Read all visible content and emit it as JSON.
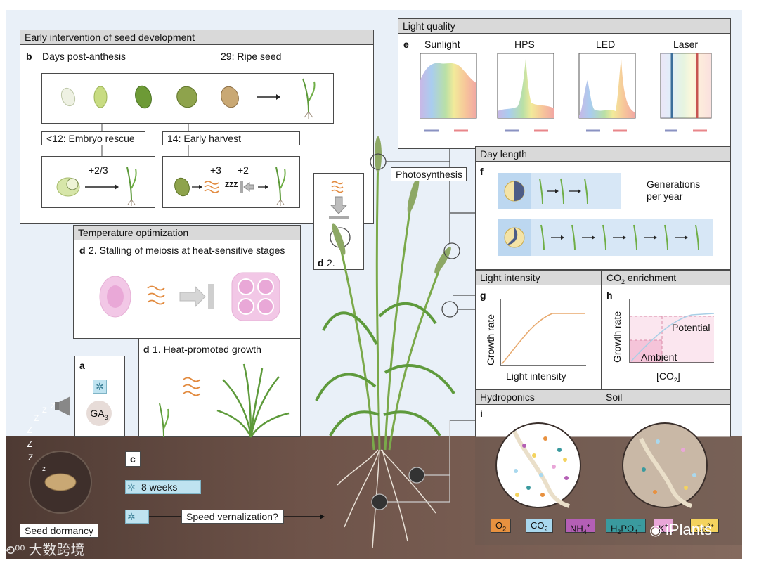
{
  "sections": {
    "seed_dev": {
      "header": "Early intervention of seed development",
      "label": "b",
      "days_title": "Days post-anthesis",
      "ripe_label": "29: Ripe seed",
      "rescue_label": "<12: Embryo rescue",
      "rescue_days": "+2/3",
      "harvest_label": "14: Early harvest",
      "harvest_days_1": "+3",
      "harvest_days_2": "+2",
      "zzz": "ZZZ"
    },
    "temperature": {
      "header": "Temperature optimization",
      "d2_label": "d",
      "d2_text": "2. Stalling of meiosis at heat-sensitive stages",
      "d1_label": "d",
      "d1_text": "1. Heat-promoted growth",
      "d2_small_label": "d",
      "d2_small_text": "2."
    },
    "dormancy": {
      "a_label": "a",
      "ga": "GA",
      "ga_sub": "3",
      "seed_dormancy": "Seed dormancy",
      "z": "Z"
    },
    "vernalization": {
      "c_label": "c",
      "weeks": "8 weeks",
      "speed_vernalization": "Speed vernalization?"
    },
    "light_quality": {
      "header": "Light quality",
      "label": "e",
      "sources": [
        "Sunlight",
        "HPS",
        "LED",
        "Laser"
      ]
    },
    "photosynthesis": "Photosynthesis",
    "day_length": {
      "header": "Day length",
      "label": "f",
      "text": "Generations per year",
      "text_line1": "Generations",
      "text_line2": "per year"
    },
    "light_intensity": {
      "header": "Light intensity",
      "label": "g",
      "ylabel": "Growth rate",
      "xlabel": "Light intensity"
    },
    "co2": {
      "header_pre": "CO",
      "header_sub": "2",
      "header_post": " enrichment",
      "label": "h",
      "ylabel": "Growth rate",
      "xlabel_pre": "[CO",
      "xlabel_sub": "2",
      "xlabel_post": "]",
      "potential": "Potential",
      "ambient": "Ambient"
    },
    "hydroponics": {
      "header": "Hydroponics",
      "soil_header": "Soil",
      "label": "i"
    },
    "legend": [
      {
        "main": "O",
        "sub": "2",
        "sup": "",
        "tail": "",
        "color": "#e8913f"
      },
      {
        "main": "CO",
        "sub": "2",
        "sup": "",
        "tail": "",
        "color": "#a9d8ee"
      },
      {
        "main": "NH",
        "sub": "4",
        "sup": "+",
        "tail": "",
        "color": "#b45fb5"
      },
      {
        "main": "H",
        "sub": "2",
        "sup": "",
        "tail": "PO",
        "tail_sub": "4",
        "tail_sup": "−",
        "color": "#3a9a9e"
      },
      {
        "main": "K",
        "sub": "",
        "sup": "+",
        "tail": "",
        "color": "#e9a6d8"
      },
      {
        "main": "Ca",
        "sub": "",
        "sup": "2+",
        "tail": "",
        "color": "#f4d35e"
      }
    ],
    "watermarks": {
      "left": "大数跨境",
      "right": "iPlants"
    }
  }
}
